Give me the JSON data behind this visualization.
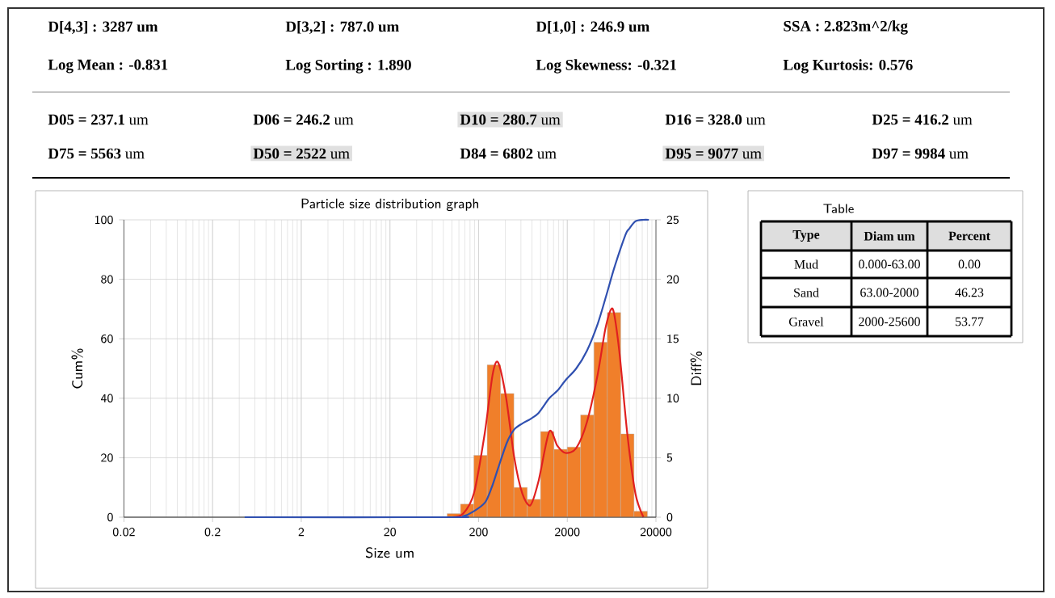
{
  "chart_data": [
    {
      "type": "other",
      "annotations": [
        "D[4,3] :   3287   um",
        "D[3,2] :   787.0   um",
        "D[1,0] :   246.9   um",
        "SSA :   2.823m^2/kg",
        "Log Mean : -0.831",
        "Log Sorting : 1.890",
        "Log Skewness: -0.321",
        "Log Kurtosis: 0.576",
        "**D05 = 237.1**  um",
        "**D06 = 246.2**  um",
        "**D10 = 280.7**  um",
        "**D16 = 328.0**  um",
        "**D25 = 416.2**  um",
        "**D75 = 5563**  um",
        "**D50 = 2522**  um",
        "**D84 = 6802**  um",
        "**D95 = 9077**  um",
        "**D97 = 9984**  um"
      ]
    },
    {
      "type": "line",
      "title": "Particle size distribution graph",
      "xlabel": "Size um",
      "ylabel": "Cum%",
      "y2label": "Diff%",
      "log": "x",
      "grid": true,
      "xlim": [
        0.02,
        20000
      ],
      "xticks": [
        0.02,
        0.2,
        2,
        20,
        200,
        2000,
        20000
      ],
      "ylim": [
        0,
        100
      ],
      "yticks": [
        0,
        20,
        40,
        60,
        80,
        100
      ],
      "y2lim": [
        0,
        25
      ],
      "y2ticks": [
        0,
        5,
        10,
        15,
        20,
        25
      ],
      "series": [
        {
          "type": "histogram",
          "axis": "y2",
          "color": "#f07f2a",
          "bins": [
            88.39,
            125,
            176.8,
            250,
            353.6,
            500,
            707.1,
            1000,
            1414,
            2000,
            2828,
            4000,
            5657,
            8000,
            11314,
            16000
          ],
          "values": [
            0.3,
            1.1,
            5.2,
            12.8,
            10.4,
            2.5,
            1.5,
            7.2,
            5.7,
            5.9,
            8.6,
            14.7,
            17.2,
            7.0,
            0.5
          ]
        },
        {
          "type": "line",
          "axis": "y2",
          "color": "#e02020",
          "x": [
            101,
            134,
            177,
            234,
            288,
            332,
            409,
            505,
            622,
            767,
            946,
            1253,
            1545,
            1905,
            2519,
            3334,
            4406,
            5434,
            6516,
            7710,
            9506,
            11720,
            14450
          ],
          "values": [
            0,
            0.3,
            2,
            7,
            12,
            13,
            10,
            5,
            2,
            1,
            3,
            7.2,
            6,
            5.4,
            5.8,
            8,
            12,
            16,
            17.5,
            14,
            7,
            2,
            0
          ]
        },
        {
          "type": "line",
          "color": "#3050b0",
          "x": [
            0.46,
            101,
            134,
            177,
            237,
            281,
            328,
            416,
            505,
            622,
            767,
            946,
            1253,
            1545,
            1905,
            2522,
            3334,
            4406,
            5563,
            6802,
            9077,
            9984,
            11720,
            14450,
            16630
          ],
          "values": [
            0,
            0,
            0.3,
            2,
            5,
            10,
            16,
            25,
            29.5,
            31.5,
            33,
            35,
            40,
            42.5,
            46,
            50,
            56,
            65,
            75,
            84,
            95,
            97,
            99.5,
            100,
            100
          ]
        }
      ]
    },
    {
      "type": "other",
      "title": "Table",
      "annotations": [
        "Type",
        "Diam um",
        "Percent",
        "Mud",
        "0.000-63.00",
        "0.00",
        "Sand",
        "63.00-2000",
        "46.23",
        "Gravel",
        "2000-25600",
        "53.77"
      ]
    }
  ]
}
